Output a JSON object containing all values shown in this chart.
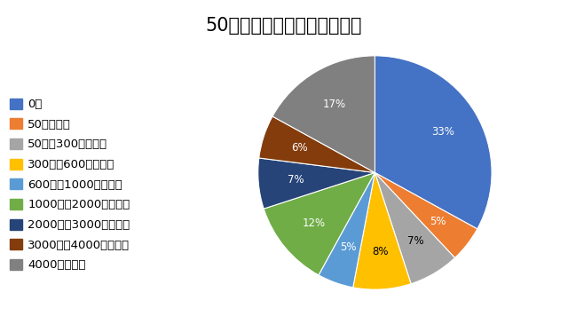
{
  "title": "50歳代のリスク資産について",
  "labels": [
    "0円",
    "50万円未満",
    "50万〜300万円未満",
    "300万〜600万円未満",
    "600万〜1000万円未満",
    "1000万〜2000万円未満",
    "2000万〜3000万円未満",
    "3000万〜4000万円未満",
    "4000万円以上"
  ],
  "values": [
    33,
    5,
    7,
    8,
    5,
    12,
    7,
    6,
    17
  ],
  "colors": [
    "#4472C4",
    "#ED7D31",
    "#A5A5A5",
    "#FFC000",
    "#5B9BD5",
    "#70AD47",
    "#264478",
    "#843C0C",
    "#808080"
  ],
  "pct_labels": [
    "33%",
    "5%",
    "7%",
    "8%",
    "5%",
    "12%",
    "7%",
    "6%",
    "17%"
  ],
  "pct_colors": [
    "white",
    "white",
    "black",
    "black",
    "white",
    "white",
    "white",
    "white",
    "white"
  ],
  "title_fontsize": 15,
  "legend_fontsize": 9.5,
  "background_color": "#FFFFFF"
}
